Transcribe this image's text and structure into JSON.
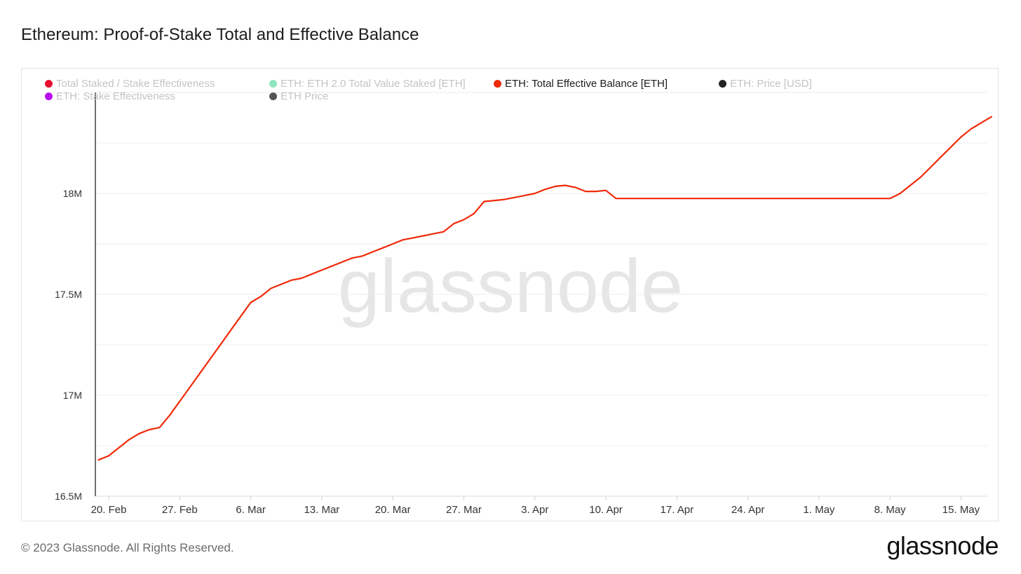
{
  "title": "Ethereum: Proof-of-Stake Total and Effective Balance",
  "footer": "© 2023 Glassnode. All Rights Reserved.",
  "brand": "glassnode",
  "watermark": "glassnode",
  "legend": [
    {
      "label": "Total Staked / Stake Effectiveness",
      "color": "#e8102e",
      "state": "muted"
    },
    {
      "label": "ETH: ETH 2.0 Total Value Staked [ETH]",
      "color": "#8fe3bd",
      "state": "muted"
    },
    {
      "label": "ETH: Total Effective Balance [ETH]",
      "color": "#f02a0a",
      "state": "active"
    },
    {
      "label": "ETH: Price [USD]",
      "color": "#222222",
      "state": "muted"
    },
    {
      "label": "ETH: Stake Effectiveness",
      "color": "#b80ef0",
      "state": "muted"
    },
    {
      "label": "ETH Price",
      "color": "#555555",
      "state": "muted"
    }
  ],
  "chart_data": {
    "type": "line",
    "title": "Ethereum: Proof-of-Stake Total and Effective Balance",
    "xlabel": "",
    "ylabel": "",
    "ylim": [
      16.5,
      18.5
    ],
    "y_unit": "M ETH",
    "grid": true,
    "x_tick_labels": [
      "20. Feb",
      "27. Feb",
      "6. Mar",
      "13. Mar",
      "20. Mar",
      "27. Mar",
      "3. Apr",
      "10. Apr",
      "17. Apr",
      "24. Apr",
      "1. May",
      "8. May",
      "15. May"
    ],
    "x_tick_days": [
      0,
      7,
      14,
      21,
      28,
      35,
      42,
      49,
      56,
      63,
      70,
      77,
      84
    ],
    "y_ticks": [
      16.5,
      17.0,
      17.5,
      18.0
    ],
    "y_tick_labels": [
      "16.5M",
      "17M",
      "17.5M",
      "18M"
    ],
    "series": [
      {
        "name": "ETH: Total Effective Balance [ETH]",
        "color": "#f02a0a",
        "x": [
          -1,
          0,
          1,
          2,
          3,
          4,
          5,
          6,
          7,
          8,
          9,
          10,
          11,
          12,
          13,
          14,
          15,
          16,
          17,
          18,
          19,
          20,
          21,
          22,
          23,
          24,
          25,
          26,
          27,
          28,
          29,
          30,
          31,
          32,
          33,
          34,
          35,
          36,
          37,
          38,
          39,
          40,
          41,
          42,
          43,
          44,
          45,
          46,
          47,
          48,
          49,
          50,
          51,
          52,
          60,
          70,
          77,
          78,
          79,
          80,
          81,
          82,
          83,
          84,
          85,
          86,
          87
        ],
        "y": [
          16.68,
          16.7,
          16.74,
          16.78,
          16.81,
          16.83,
          16.84,
          16.9,
          16.97,
          17.04,
          17.11,
          17.18,
          17.25,
          17.32,
          17.39,
          17.46,
          17.49,
          17.53,
          17.55,
          17.57,
          17.58,
          17.6,
          17.62,
          17.64,
          17.66,
          17.68,
          17.69,
          17.71,
          17.73,
          17.75,
          17.77,
          17.78,
          17.79,
          17.8,
          17.81,
          17.85,
          17.87,
          17.9,
          17.96,
          17.965,
          17.97,
          17.98,
          17.99,
          18.0,
          18.02,
          18.035,
          18.04,
          18.03,
          18.01,
          18.01,
          18.015,
          17.975,
          17.975,
          17.975,
          17.975,
          17.975,
          17.975,
          18.0,
          18.04,
          18.08,
          18.13,
          18.18,
          18.23,
          18.28,
          18.32,
          18.35,
          18.38
        ]
      }
    ]
  }
}
